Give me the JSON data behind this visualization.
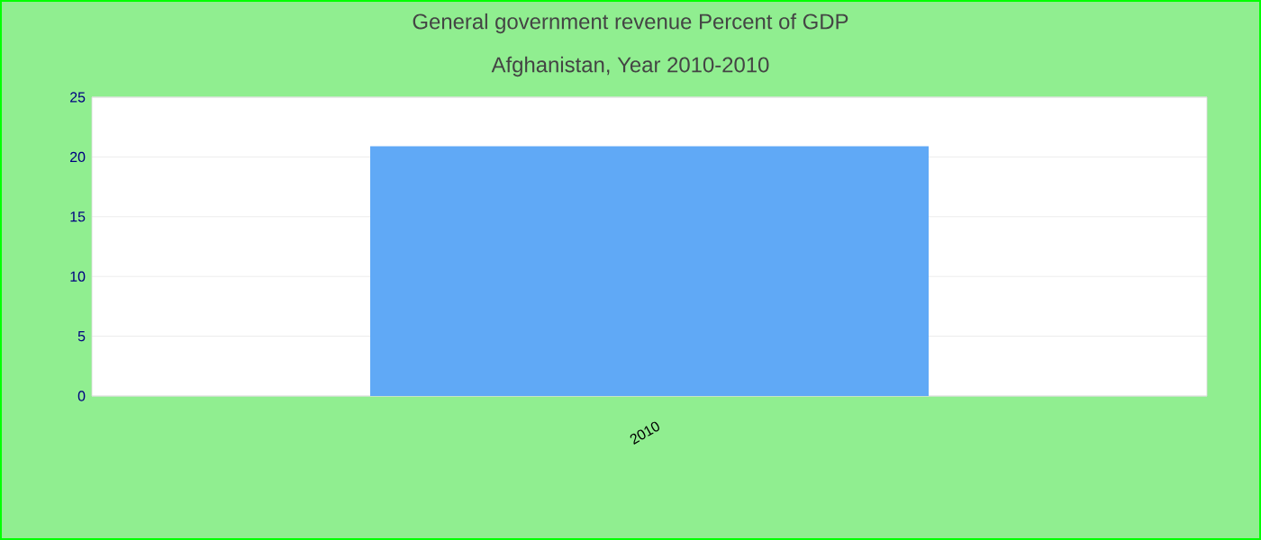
{
  "chart_data": {
    "type": "bar",
    "title": "General government revenue  Percent of GDP",
    "subtitle": "Afghanistan, Year 2010-2010",
    "categories": [
      "2010"
    ],
    "values": [
      20.9
    ],
    "color": "#60a9f6",
    "ylim": [
      0,
      25
    ],
    "yticks": [
      0,
      5,
      10,
      15,
      20,
      25
    ],
    "grid": "y"
  }
}
